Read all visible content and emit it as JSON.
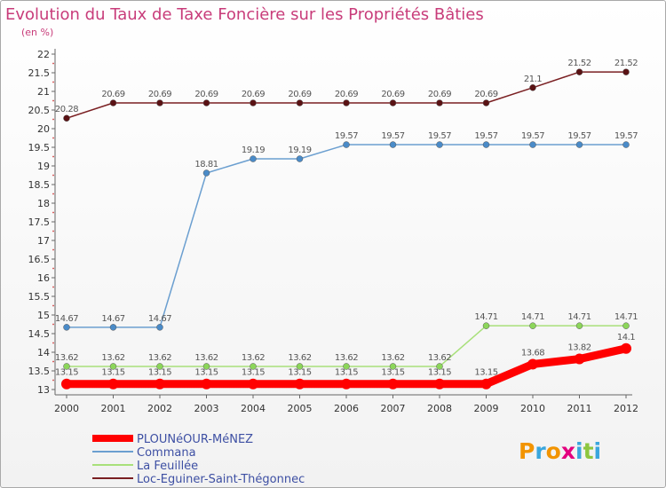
{
  "chart_data": {
    "type": "line",
    "title": "Evolution du Taux de Taxe Foncière sur les Propriétés Bâties",
    "ylabel": "(en %)",
    "xlabel": "",
    "ylim": [
      13,
      22
    ],
    "ytick_step": 0.5,
    "categories": [
      "2000",
      "2001",
      "2002",
      "2003",
      "2004",
      "2005",
      "2006",
      "2007",
      "2008",
      "2009",
      "2010",
      "2011",
      "2012"
    ],
    "series": [
      {
        "name": "Loc-Eguiner-Saint-Thégonnec",
        "color": "#7a1f22",
        "marker": "#5a1214",
        "values": [
          20.28,
          20.69,
          20.69,
          20.69,
          20.69,
          20.69,
          20.69,
          20.69,
          20.69,
          20.69,
          21.1,
          21.52,
          21.52
        ],
        "labels": [
          "20.28",
          "20.69",
          "20.69",
          "20.69",
          "20.69",
          "20.69",
          "20.69",
          "20.69",
          "20.69",
          "20.69",
          "21.1",
          "21.52",
          "21.52"
        ]
      },
      {
        "name": "Commana",
        "color": "#6b9fd0",
        "marker": "#4a8bc8",
        "values": [
          14.67,
          14.67,
          14.67,
          18.81,
          19.19,
          19.19,
          19.57,
          19.57,
          19.57,
          19.57,
          19.57,
          19.57,
          19.57
        ],
        "labels": [
          "14.67",
          "14.67",
          "14.67",
          "18.81",
          "19.19",
          "19.19",
          "19.57",
          "19.57",
          "19.57",
          "19.57",
          "19.57",
          "19.57",
          "19.57"
        ]
      },
      {
        "name": "La Feuillée",
        "color": "#a8e07a",
        "marker": "#8cd65a",
        "values": [
          13.62,
          13.62,
          13.62,
          13.62,
          13.62,
          13.62,
          13.62,
          13.62,
          13.62,
          14.71,
          14.71,
          14.71,
          14.71
        ],
        "labels": [
          "13.62",
          "13.62",
          "13.62",
          "13.62",
          "13.62",
          "13.62",
          "13.62",
          "13.62",
          "13.62",
          "14.71",
          "14.71",
          "14.71",
          "14.71"
        ]
      },
      {
        "name": "PLOUNéOUR-MéNEZ",
        "color": "#ff0000",
        "marker": "#ff0000",
        "values": [
          13.15,
          13.15,
          13.15,
          13.15,
          13.15,
          13.15,
          13.15,
          13.15,
          13.15,
          13.15,
          13.68,
          13.82,
          14.1
        ],
        "labels": [
          "13.15",
          "13.15",
          "13.15",
          "13.15",
          "13.15",
          "13.15",
          "13.15",
          "13.15",
          "13.15",
          "13.15",
          "13.68",
          "13.82",
          "14.1"
        ]
      }
    ],
    "legend_order": [
      "PLOUNéOUR-MéNEZ",
      "Commana",
      "La Feuillée",
      "Loc-Eguiner-Saint-Thégonnec"
    ],
    "legend_position": "bottom-left",
    "grid": false
  },
  "branding": {
    "logo_text": "Proxiti",
    "logo_colors": [
      "#f29400",
      "#3aa6dd",
      "#f29400",
      "#e3007e",
      "#3aa6dd",
      "#8dc63f",
      "#3aa6dd"
    ]
  }
}
